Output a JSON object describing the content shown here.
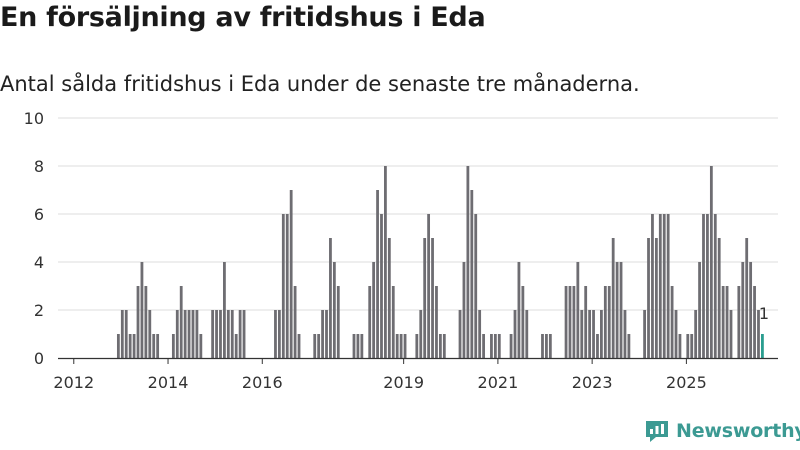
{
  "title": "En försäljning av fritidshus i Eda",
  "subtitle": "Antal sålda fritidshus i Eda under de senaste tre månaderna.",
  "brand": "Newsworthy",
  "colors": {
    "bar": "#6e6d72",
    "highlight": "#2a9d8f",
    "grid": "#dedede",
    "axis": "#333333",
    "brand": "#3c9a93"
  },
  "chart_data": {
    "type": "bar",
    "title": "En försäljning av fritidshus i Eda",
    "subtitle": "Antal sålda fritidshus i Eda under de senaste tre månaderna.",
    "xlabel": "",
    "ylabel": "",
    "ylim": [
      0,
      10
    ],
    "yticks": [
      0,
      2,
      4,
      6,
      8,
      10
    ],
    "x_tick_labels": [
      "2012",
      "2014",
      "2016",
      "2019",
      "2021",
      "2023",
      "2025"
    ],
    "x_tick_months": [
      3,
      27,
      51,
      87,
      111,
      135,
      159
    ],
    "highlight_label": "1",
    "values": [
      0,
      0,
      0,
      0,
      0,
      0,
      0,
      0,
      0,
      0,
      0,
      0,
      0,
      0,
      1,
      2,
      2,
      1,
      1,
      3,
      4,
      3,
      2,
      1,
      1,
      0,
      0,
      0,
      1,
      2,
      3,
      2,
      2,
      2,
      2,
      1,
      0,
      0,
      2,
      2,
      2,
      4,
      2,
      2,
      1,
      2,
      2,
      0,
      0,
      0,
      0,
      0,
      0,
      0,
      2,
      2,
      6,
      6,
      7,
      3,
      1,
      0,
      0,
      0,
      1,
      1,
      2,
      2,
      5,
      4,
      3,
      0,
      0,
      0,
      1,
      1,
      1,
      0,
      3,
      4,
      7,
      6,
      8,
      5,
      3,
      1,
      1,
      1,
      0,
      0,
      1,
      2,
      5,
      6,
      5,
      3,
      1,
      1,
      0,
      0,
      0,
      2,
      4,
      8,
      7,
      6,
      2,
      1,
      0,
      1,
      1,
      1,
      0,
      0,
      1,
      2,
      4,
      3,
      2,
      0,
      0,
      0,
      1,
      1,
      1,
      0,
      0,
      0,
      3,
      3,
      3,
      4,
      2,
      3,
      2,
      2,
      1,
      2,
      3,
      3,
      5,
      4,
      4,
      2,
      1,
      0,
      0,
      0,
      2,
      5,
      6,
      5,
      6,
      6,
      6,
      3,
      2,
      1,
      0,
      1,
      1,
      2,
      4,
      6,
      6,
      8,
      6,
      5,
      3,
      3,
      2,
      0,
      3,
      4,
      5,
      4,
      3,
      2,
      1
    ]
  }
}
